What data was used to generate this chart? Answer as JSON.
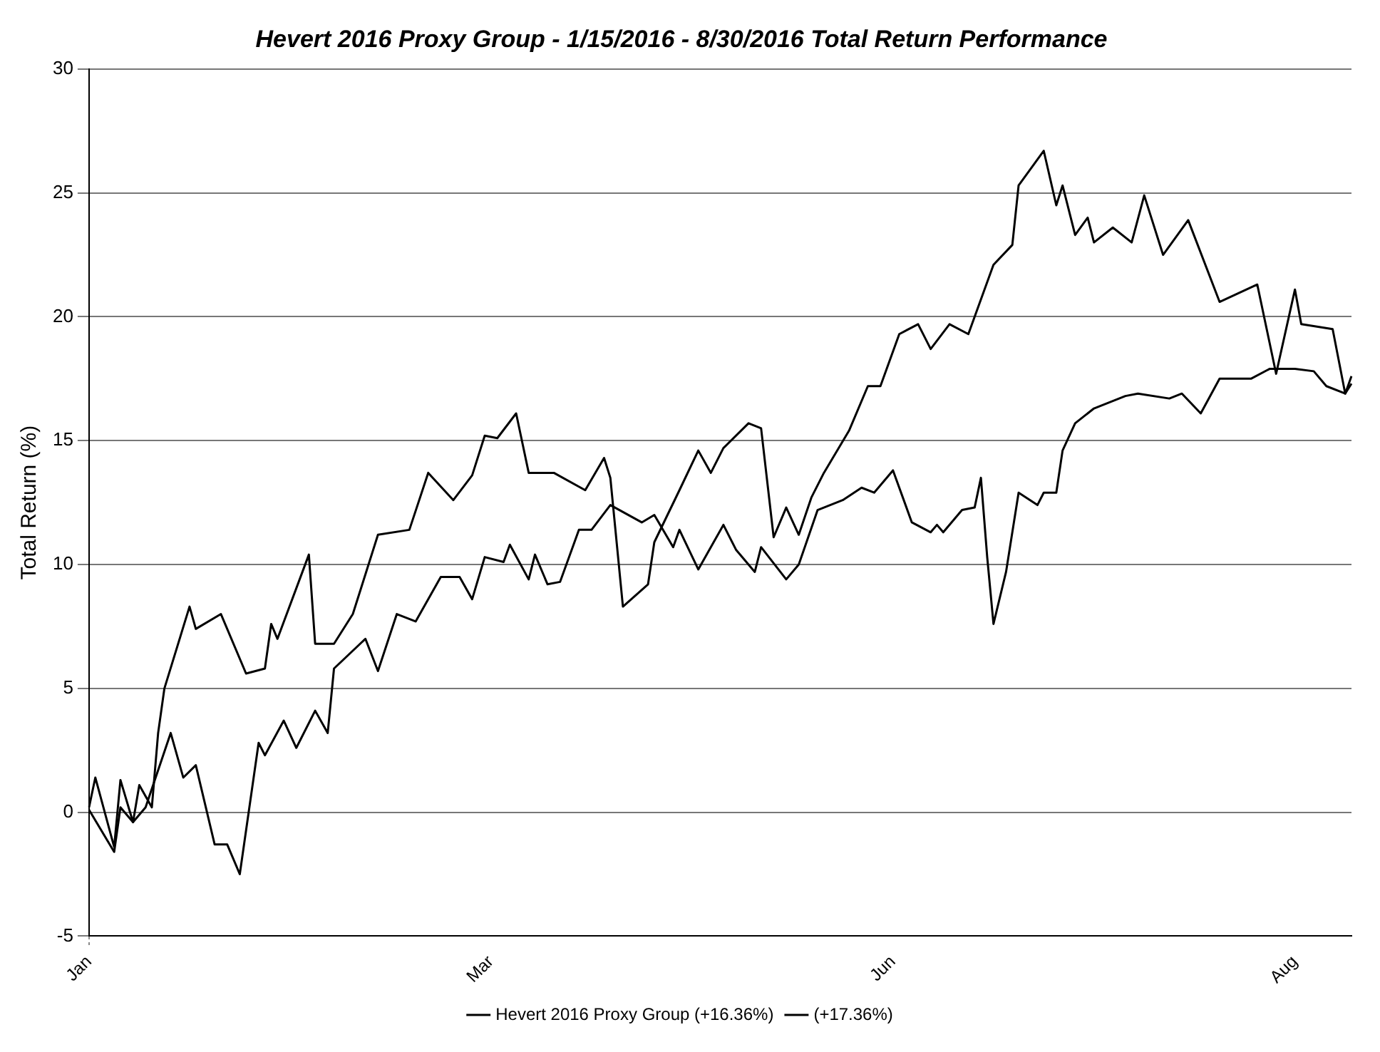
{
  "chart_data": {
    "type": "line",
    "title": "Hevert 2016 Proxy Group - 1/15/2016 - 8/30/2016 Total Return Performance",
    "ylabel": "Total Return (%)",
    "categories": [
      "Jan",
      null,
      null,
      null,
      null,
      null,
      null,
      null,
      null,
      null,
      null,
      null,
      null,
      null,
      null,
      null,
      null,
      null,
      null,
      null,
      null,
      null,
      null,
      null,
      null,
      null,
      null,
      null,
      null,
      null,
      null,
      null,
      null,
      null,
      null,
      null,
      null,
      null,
      null,
      null,
      null,
      null,
      null,
      null,
      null,
      null,
      null,
      null,
      null,
      null,
      null,
      null,
      null,
      null,
      null,
      null,
      null,
      null,
      null,
      null,
      null,
      null,
      null,
      null,
      "Mar",
      null,
      null,
      null,
      null,
      null,
      null,
      null,
      null,
      null,
      null,
      null,
      null,
      null,
      null,
      null,
      null,
      null,
      null,
      null,
      null,
      null,
      null,
      null,
      null,
      null,
      null,
      null,
      null,
      null,
      null,
      null,
      null,
      null,
      null,
      null,
      null,
      null,
      null,
      null,
      null,
      null,
      null,
      null,
      null,
      null,
      null,
      null,
      null,
      null,
      null,
      null,
      null,
      null,
      null,
      null,
      null,
      null,
      null,
      null,
      null,
      null,
      null,
      null,
      "Jun",
      null,
      null,
      null,
      null,
      null,
      null,
      null,
      null,
      null,
      null,
      null,
      null,
      null,
      null,
      null,
      null,
      null,
      null,
      null,
      null,
      null,
      null,
      null,
      null,
      null,
      null,
      null,
      null,
      null,
      null,
      null,
      null,
      null,
      null,
      null,
      null,
      null,
      null,
      null,
      null,
      null,
      null,
      null,
      null,
      null,
      null,
      null,
      null,
      null,
      null,
      null,
      null,
      null,
      null,
      null,
      null,
      null,
      null,
      null,
      null,
      null,
      null,
      null,
      "Aug",
      null,
      null,
      null,
      null,
      null,
      null,
      null,
      null,
      null
    ],
    "series": [
      {
        "name": "Hevert 2016 Proxy Group (+16.36%)",
        "color": "#000000",
        "values": [
          0.2,
          1.4,
          null,
          null,
          -1.4,
          1.3,
          null,
          -0.4,
          1.1,
          null,
          0.2,
          3.2,
          5.0,
          null,
          null,
          null,
          8.3,
          7.4,
          null,
          null,
          null,
          8.0,
          null,
          null,
          null,
          5.6,
          null,
          null,
          5.8,
          7.6,
          7.0,
          null,
          null,
          null,
          null,
          10.4,
          6.8,
          null,
          null,
          6.8,
          null,
          null,
          8.0,
          null,
          null,
          null,
          11.2,
          null,
          null,
          null,
          null,
          11.4,
          null,
          null,
          13.7,
          null,
          null,
          null,
          12.6,
          null,
          null,
          13.6,
          null,
          15.2,
          null,
          15.1,
          null,
          null,
          16.1,
          null,
          13.7,
          null,
          null,
          null,
          13.7,
          null,
          null,
          null,
          null,
          13.0,
          null,
          null,
          14.3,
          13.5,
          null,
          8.3,
          null,
          null,
          null,
          9.2,
          10.9,
          null,
          null,
          null,
          13.0,
          null,
          null,
          14.6,
          null,
          13.7,
          null,
          14.7,
          null,
          null,
          null,
          15.7,
          null,
          15.5,
          null,
          11.1,
          null,
          12.3,
          null,
          11.2,
          null,
          12.7,
          null,
          13.7,
          null,
          null,
          null,
          15.4,
          null,
          null,
          17.2,
          null,
          17.2,
          null,
          null,
          19.3,
          null,
          null,
          19.7,
          null,
          18.7,
          null,
          null,
          19.7,
          null,
          null,
          19.3,
          null,
          null,
          null,
          22.1,
          null,
          null,
          22.9,
          25.3,
          null,
          null,
          null,
          26.7,
          null,
          24.5,
          25.3,
          null,
          23.3,
          null,
          24.0,
          23.0,
          null,
          null,
          23.6,
          null,
          null,
          23.0,
          null,
          24.9,
          null,
          null,
          22.5,
          null,
          null,
          null,
          23.9,
          null,
          null,
          null,
          null,
          20.6,
          null,
          null,
          null,
          null,
          null,
          21.3,
          null,
          null,
          17.7,
          null,
          null,
          21.1,
          19.7,
          null,
          null,
          null,
          null,
          19.5,
          null,
          16.9,
          17.6
        ]
      },
      {
        "name": "(+17.36%)",
        "color": "#000000",
        "values": [
          0.1,
          null,
          null,
          null,
          -1.6,
          0.2,
          null,
          -0.4,
          null,
          0.2,
          null,
          null,
          null,
          3.2,
          null,
          1.4,
          null,
          1.9,
          null,
          null,
          -1.3,
          null,
          -1.3,
          null,
          -2.5,
          null,
          null,
          2.8,
          2.3,
          null,
          null,
          3.7,
          null,
          2.6,
          null,
          null,
          4.1,
          null,
          3.2,
          5.8,
          null,
          null,
          null,
          null,
          7.0,
          null,
          5.7,
          null,
          null,
          8.0,
          null,
          null,
          7.7,
          null,
          null,
          null,
          9.5,
          null,
          null,
          9.5,
          null,
          8.6,
          null,
          10.3,
          null,
          null,
          10.1,
          10.8,
          null,
          null,
          9.4,
          10.4,
          null,
          9.2,
          null,
          9.3,
          null,
          null,
          11.4,
          null,
          11.4,
          null,
          null,
          12.4,
          null,
          null,
          null,
          null,
          11.7,
          null,
          12.0,
          null,
          null,
          10.7,
          11.4,
          null,
          null,
          9.8,
          null,
          null,
          null,
          11.6,
          null,
          10.6,
          null,
          null,
          9.7,
          10.7,
          null,
          null,
          null,
          9.4,
          null,
          10.0,
          null,
          null,
          12.2,
          null,
          null,
          null,
          12.6,
          null,
          null,
          13.1,
          null,
          12.9,
          null,
          null,
          13.8,
          null,
          null,
          11.7,
          null,
          null,
          11.3,
          11.6,
          11.3,
          null,
          null,
          12.2,
          null,
          12.3,
          13.5,
          10.3,
          7.6,
          null,
          9.7,
          null,
          12.9,
          null,
          null,
          12.4,
          12.9,
          null,
          12.9,
          14.6,
          null,
          15.7,
          null,
          null,
          16.3,
          null,
          null,
          null,
          null,
          16.8,
          null,
          16.9,
          null,
          null,
          null,
          null,
          16.7,
          null,
          16.9,
          null,
          null,
          16.1,
          null,
          null,
          17.5,
          null,
          null,
          null,
          null,
          17.5,
          null,
          null,
          17.9,
          null,
          null,
          null,
          17.9,
          null,
          null,
          17.8,
          null,
          17.2,
          null,
          null,
          16.9,
          17.3
        ]
      }
    ],
    "ylim": [
      -5,
      30
    ],
    "yticks": [
      -5,
      0,
      5,
      10,
      15,
      20,
      25,
      30
    ],
    "grid": true,
    "legend": "bottom"
  }
}
